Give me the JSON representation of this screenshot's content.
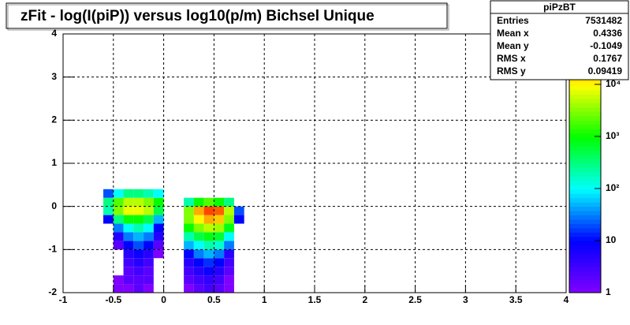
{
  "chart_data": {
    "type": "heatmap2d",
    "title": "zFit - log(I(piP)) versus log10(p/m) Bichsel Unique",
    "stats_title": "piPzBT",
    "stats": [
      {
        "label": "Entries",
        "value": 7531482
      },
      {
        "label": "Mean x",
        "value": 0.4336
      },
      {
        "label": "Mean y",
        "value": -0.1049
      },
      {
        "label": "RMS x",
        "value": 0.1767
      },
      {
        "label": "RMS y",
        "value": 0.09419
      }
    ],
    "xlim": [
      -1,
      4
    ],
    "xticks": [
      -1,
      -0.5,
      0,
      0.5,
      1,
      1.5,
      2,
      2.5,
      3,
      3.5,
      4
    ],
    "ylim": [
      -2,
      4
    ],
    "yticks": [
      -2,
      -1,
      0,
      1,
      2,
      3,
      4
    ],
    "zlim": [
      1,
      93000
    ],
    "zlog": true,
    "zticks": [
      1,
      10,
      {
        "value": 100,
        "label": "10²"
      },
      {
        "value": 1000,
        "label": "10³"
      },
      {
        "value": 10000,
        "label": "10⁴"
      }
    ],
    "palette": [
      "#7f00ff",
      "#0000ff",
      "#00ffff",
      "#00ff00",
      "#ffff00",
      "#ff0000"
    ],
    "grid": true,
    "xbins": [
      -0.6,
      -0.5,
      -0.4,
      -0.3,
      -0.2,
      -0.1,
      0,
      0.1,
      0.2,
      0.3,
      0.4,
      0.5,
      0.6,
      0.7,
      0.8
    ],
    "ybins": [
      -2,
      -1.8,
      -1.6,
      -1.4,
      -1.2,
      -1,
      -0.8,
      -0.6,
      -0.4,
      -0.2,
      0,
      0.2,
      0.4
    ],
    "values": [
      [
        null,
        1,
        1,
        2,
        1,
        null,
        null,
        null,
        1,
        2,
        3,
        2,
        1,
        null
      ],
      [
        null,
        1,
        2,
        2,
        2,
        null,
        null,
        null,
        2,
        3,
        4,
        3,
        1,
        null
      ],
      [
        null,
        null,
        2,
        3,
        2,
        null,
        null,
        null,
        3,
        5,
        8,
        5,
        2,
        null
      ],
      [
        null,
        null,
        3,
        5,
        3,
        null,
        null,
        null,
        5,
        10,
        15,
        10,
        3,
        null
      ],
      [
        null,
        null,
        5,
        8,
        5,
        1,
        null,
        null,
        10,
        30,
        50,
        30,
        5,
        null
      ],
      [
        null,
        2,
        10,
        20,
        10,
        2,
        null,
        null,
        50,
        100,
        200,
        150,
        30,
        null
      ],
      [
        null,
        5,
        30,
        50,
        30,
        5,
        null,
        null,
        200,
        500,
        800,
        600,
        100,
        null
      ],
      [
        null,
        30,
        100,
        200,
        100,
        10,
        null,
        null,
        1000,
        3000,
        5000,
        4000,
        800,
        null
      ],
      [
        10,
        300,
        1000,
        1000,
        500,
        50,
        null,
        null,
        3000,
        10000,
        20000,
        15000,
        3000,
        10
      ],
      [
        200,
        3000,
        8000,
        8000,
        5000,
        500,
        null,
        null,
        3000,
        20000,
        50000,
        40000,
        5000,
        20
      ],
      [
        300,
        2000,
        5000,
        5000,
        3000,
        1000,
        null,
        null,
        200,
        1000,
        2000,
        1000,
        300,
        null
      ],
      [
        20,
        100,
        300,
        300,
        200,
        100,
        null,
        null,
        null,
        null,
        null,
        null,
        null,
        null
      ]
    ]
  }
}
